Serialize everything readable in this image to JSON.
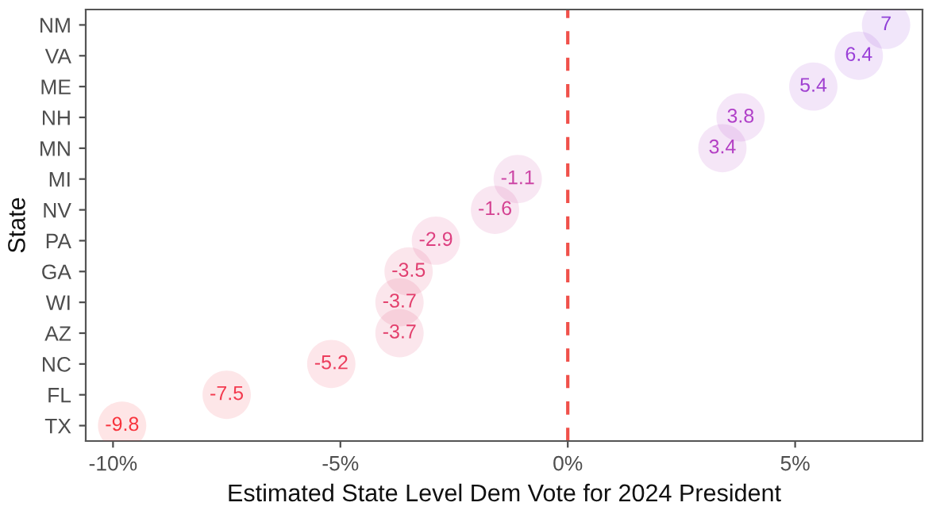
{
  "chart_data": {
    "type": "scatter",
    "orientation": "horizontal",
    "xlabel": "Estimated State Level Dem Vote for 2024 President",
    "ylabel": "State",
    "categories": [
      "NM",
      "VA",
      "ME",
      "NH",
      "MN",
      "MI",
      "NV",
      "PA",
      "GA",
      "WI",
      "AZ",
      "NC",
      "FL",
      "TX"
    ],
    "values": [
      7,
      6.4,
      5.4,
      3.8,
      3.4,
      -1.1,
      -1.6,
      -2.9,
      -3.5,
      -3.7,
      -3.7,
      -5.2,
      -7.5,
      -9.8
    ],
    "colors": [
      "#9040d8",
      "#9a40d8",
      "#a040d0",
      "#b040c8",
      "#b440c4",
      "#cc45a5",
      "#d44090",
      "#dd4080",
      "#e03f70",
      "#e33f6c",
      "#e33f6c",
      "#ec3d5c",
      "#f33a4f",
      "#f8333c"
    ],
    "data_labels": true,
    "marker": "circle",
    "grid": false,
    "xlim": [
      -10.6,
      7.8
    ],
    "xticks": [
      {
        "value": -10,
        "label": "-10%"
      },
      {
        "value": -5,
        "label": "-5%"
      },
      {
        "value": 0,
        "label": "0%"
      },
      {
        "value": 5,
        "label": "5%"
      }
    ],
    "ref_lines": [
      {
        "axis": "x",
        "value": 0,
        "label": null,
        "color": "#f0504a",
        "line_style": "dashed"
      }
    ]
  }
}
